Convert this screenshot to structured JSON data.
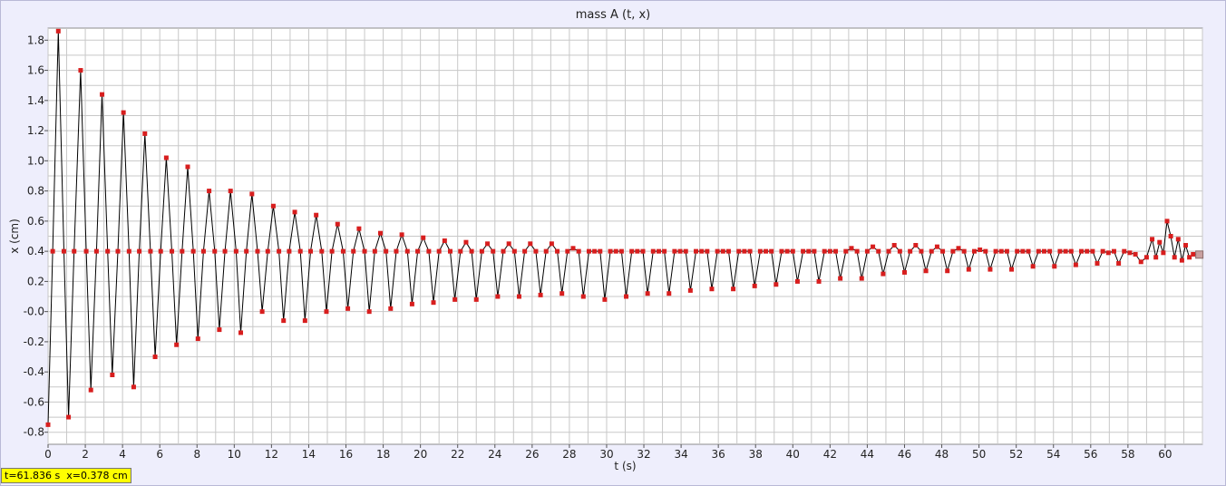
{
  "window": {
    "bg": "#eeeefc"
  },
  "colors": {
    "marker": "#d81e1e",
    "line": "#000000",
    "grid": "#c8c8c8",
    "plot_bg": "#ffffff"
  },
  "readout": "t=61.836 s  x=0.378 cm",
  "chart_data": {
    "type": "line",
    "title": "mass A (t, x)",
    "xlabel": "t (s)",
    "ylabel": "x (cm)",
    "xlim": [
      0,
      62
    ],
    "ylim": [
      -0.88,
      1.88
    ],
    "x_ticks": [
      0,
      2,
      4,
      6,
      8,
      10,
      12,
      14,
      16,
      18,
      20,
      22,
      24,
      26,
      28,
      30,
      32,
      34,
      36,
      38,
      40,
      42,
      44,
      46,
      48,
      50,
      52,
      54,
      56,
      58,
      60
    ],
    "y_ticks": [
      -0.8,
      -0.6,
      -0.4,
      -0.2,
      0.0,
      0.2,
      0.4,
      0.6,
      0.8,
      1.0,
      1.2,
      1.4,
      1.6,
      1.8
    ],
    "y_tick_labels": [
      "-0.8",
      "-0.6",
      "-0.4",
      "-0.2",
      "-0.0",
      "0.2",
      "0.4",
      "0.6",
      "0.8",
      "1.0",
      "1.2",
      "1.4",
      "1.6",
      "1.8"
    ],
    "grid": true,
    "series": [
      {
        "marker": "square",
        "points": [
          [
            0.0,
            -0.75
          ],
          [
            0.25,
            0.4
          ],
          [
            0.55,
            1.86
          ],
          [
            0.85,
            0.4
          ],
          [
            1.1,
            -0.7
          ],
          [
            1.4,
            0.4
          ],
          [
            1.75,
            1.6
          ],
          [
            2.05,
            0.4
          ],
          [
            2.3,
            -0.52
          ],
          [
            2.6,
            0.4
          ],
          [
            2.9,
            1.44
          ],
          [
            3.2,
            0.4
          ],
          [
            3.45,
            -0.42
          ],
          [
            3.75,
            0.4
          ],
          [
            4.05,
            1.32
          ],
          [
            4.35,
            0.4
          ],
          [
            4.6,
            -0.5
          ],
          [
            4.9,
            0.4
          ],
          [
            5.2,
            1.18
          ],
          [
            5.5,
            0.4
          ],
          [
            5.75,
            -0.3
          ],
          [
            6.05,
            0.4
          ],
          [
            6.35,
            1.02
          ],
          [
            6.65,
            0.4
          ],
          [
            6.9,
            -0.22
          ],
          [
            7.2,
            0.4
          ],
          [
            7.5,
            0.96
          ],
          [
            7.8,
            0.4
          ],
          [
            8.05,
            -0.18
          ],
          [
            8.35,
            0.4
          ],
          [
            8.65,
            0.8
          ],
          [
            8.95,
            0.4
          ],
          [
            9.2,
            -0.12
          ],
          [
            9.5,
            0.4
          ],
          [
            9.8,
            0.8
          ],
          [
            10.1,
            0.4
          ],
          [
            10.35,
            -0.14
          ],
          [
            10.65,
            0.4
          ],
          [
            10.95,
            0.78
          ],
          [
            11.25,
            0.4
          ],
          [
            11.5,
            0.0
          ],
          [
            11.8,
            0.4
          ],
          [
            12.1,
            0.7
          ],
          [
            12.4,
            0.4
          ],
          [
            12.65,
            -0.06
          ],
          [
            12.95,
            0.4
          ],
          [
            13.25,
            0.66
          ],
          [
            13.55,
            0.4
          ],
          [
            13.8,
            -0.06
          ],
          [
            14.1,
            0.4
          ],
          [
            14.4,
            0.64
          ],
          [
            14.7,
            0.4
          ],
          [
            14.95,
            0.0
          ],
          [
            15.25,
            0.4
          ],
          [
            15.55,
            0.58
          ],
          [
            15.85,
            0.4
          ],
          [
            16.1,
            0.02
          ],
          [
            16.4,
            0.4
          ],
          [
            16.7,
            0.55
          ],
          [
            17.0,
            0.4
          ],
          [
            17.25,
            0.0
          ],
          [
            17.55,
            0.4
          ],
          [
            17.85,
            0.52
          ],
          [
            18.15,
            0.4
          ],
          [
            18.4,
            0.02
          ],
          [
            18.7,
            0.4
          ],
          [
            19.0,
            0.51
          ],
          [
            19.3,
            0.4
          ],
          [
            19.55,
            0.05
          ],
          [
            19.85,
            0.4
          ],
          [
            20.15,
            0.49
          ],
          [
            20.45,
            0.4
          ],
          [
            20.7,
            0.06
          ],
          [
            21.0,
            0.4
          ],
          [
            21.3,
            0.47
          ],
          [
            21.6,
            0.4
          ],
          [
            21.85,
            0.08
          ],
          [
            22.15,
            0.4
          ],
          [
            22.45,
            0.46
          ],
          [
            22.75,
            0.4
          ],
          [
            23.0,
            0.08
          ],
          [
            23.3,
            0.4
          ],
          [
            23.6,
            0.45
          ],
          [
            23.9,
            0.4
          ],
          [
            24.15,
            0.1
          ],
          [
            24.45,
            0.4
          ],
          [
            24.75,
            0.45
          ],
          [
            25.05,
            0.4
          ],
          [
            25.3,
            0.1
          ],
          [
            25.6,
            0.4
          ],
          [
            25.9,
            0.45
          ],
          [
            26.2,
            0.4
          ],
          [
            26.45,
            0.11
          ],
          [
            26.75,
            0.4
          ],
          [
            27.05,
            0.45
          ],
          [
            27.35,
            0.4
          ],
          [
            27.6,
            0.12
          ],
          [
            27.9,
            0.4
          ],
          [
            28.2,
            0.42
          ],
          [
            28.5,
            0.4
          ],
          [
            28.75,
            0.1
          ],
          [
            29.05,
            0.4
          ],
          [
            29.35,
            0.4
          ],
          [
            29.65,
            0.4
          ],
          [
            29.9,
            0.08
          ],
          [
            30.2,
            0.4
          ],
          [
            30.5,
            0.4
          ],
          [
            30.8,
            0.4
          ],
          [
            31.05,
            0.1
          ],
          [
            31.35,
            0.4
          ],
          [
            31.65,
            0.4
          ],
          [
            31.95,
            0.4
          ],
          [
            32.2,
            0.12
          ],
          [
            32.5,
            0.4
          ],
          [
            32.8,
            0.4
          ],
          [
            33.1,
            0.4
          ],
          [
            33.35,
            0.12
          ],
          [
            33.65,
            0.4
          ],
          [
            33.95,
            0.4
          ],
          [
            34.25,
            0.4
          ],
          [
            34.5,
            0.14
          ],
          [
            34.8,
            0.4
          ],
          [
            35.1,
            0.4
          ],
          [
            35.4,
            0.4
          ],
          [
            35.65,
            0.15
          ],
          [
            35.95,
            0.4
          ],
          [
            36.25,
            0.4
          ],
          [
            36.55,
            0.4
          ],
          [
            36.8,
            0.15
          ],
          [
            37.1,
            0.4
          ],
          [
            37.4,
            0.4
          ],
          [
            37.7,
            0.4
          ],
          [
            37.95,
            0.17
          ],
          [
            38.25,
            0.4
          ],
          [
            38.55,
            0.4
          ],
          [
            38.85,
            0.4
          ],
          [
            39.1,
            0.18
          ],
          [
            39.4,
            0.4
          ],
          [
            39.7,
            0.4
          ],
          [
            40.0,
            0.4
          ],
          [
            40.25,
            0.2
          ],
          [
            40.55,
            0.4
          ],
          [
            40.85,
            0.4
          ],
          [
            41.15,
            0.4
          ],
          [
            41.4,
            0.2
          ],
          [
            41.7,
            0.4
          ],
          [
            42.0,
            0.4
          ],
          [
            42.3,
            0.4
          ],
          [
            42.55,
            0.22
          ],
          [
            42.85,
            0.4
          ],
          [
            43.15,
            0.42
          ],
          [
            43.45,
            0.4
          ],
          [
            43.7,
            0.22
          ],
          [
            44.0,
            0.4
          ],
          [
            44.3,
            0.43
          ],
          [
            44.6,
            0.4
          ],
          [
            44.85,
            0.25
          ],
          [
            45.15,
            0.4
          ],
          [
            45.45,
            0.44
          ],
          [
            45.75,
            0.4
          ],
          [
            46.0,
            0.26
          ],
          [
            46.3,
            0.4
          ],
          [
            46.6,
            0.44
          ],
          [
            46.9,
            0.4
          ],
          [
            47.15,
            0.27
          ],
          [
            47.45,
            0.4
          ],
          [
            47.75,
            0.43
          ],
          [
            48.05,
            0.4
          ],
          [
            48.3,
            0.27
          ],
          [
            48.6,
            0.4
          ],
          [
            48.9,
            0.42
          ],
          [
            49.2,
            0.4
          ],
          [
            49.45,
            0.28
          ],
          [
            49.75,
            0.4
          ],
          [
            50.05,
            0.41
          ],
          [
            50.35,
            0.4
          ],
          [
            50.6,
            0.28
          ],
          [
            50.9,
            0.4
          ],
          [
            51.2,
            0.4
          ],
          [
            51.5,
            0.4
          ],
          [
            51.75,
            0.28
          ],
          [
            52.05,
            0.4
          ],
          [
            52.35,
            0.4
          ],
          [
            52.65,
            0.4
          ],
          [
            52.9,
            0.3
          ],
          [
            53.2,
            0.4
          ],
          [
            53.5,
            0.4
          ],
          [
            53.8,
            0.4
          ],
          [
            54.05,
            0.3
          ],
          [
            54.35,
            0.4
          ],
          [
            54.65,
            0.4
          ],
          [
            54.95,
            0.4
          ],
          [
            55.2,
            0.31
          ],
          [
            55.5,
            0.4
          ],
          [
            55.8,
            0.4
          ],
          [
            56.1,
            0.4
          ],
          [
            56.35,
            0.32
          ],
          [
            56.65,
            0.4
          ],
          [
            56.95,
            0.39
          ],
          [
            57.25,
            0.4
          ],
          [
            57.5,
            0.32
          ],
          [
            57.8,
            0.4
          ],
          [
            58.1,
            0.39
          ],
          [
            58.4,
            0.38
          ],
          [
            58.7,
            0.33
          ],
          [
            59.0,
            0.36
          ],
          [
            59.3,
            0.48
          ],
          [
            59.5,
            0.36
          ],
          [
            59.7,
            0.46
          ],
          [
            59.9,
            0.39
          ],
          [
            60.1,
            0.6
          ],
          [
            60.3,
            0.5
          ],
          [
            60.5,
            0.36
          ],
          [
            60.7,
            0.48
          ],
          [
            60.9,
            0.34
          ],
          [
            61.1,
            0.44
          ],
          [
            61.3,
            0.36
          ],
          [
            61.5,
            0.38
          ],
          [
            61.836,
            0.378
          ]
        ]
      }
    ]
  }
}
